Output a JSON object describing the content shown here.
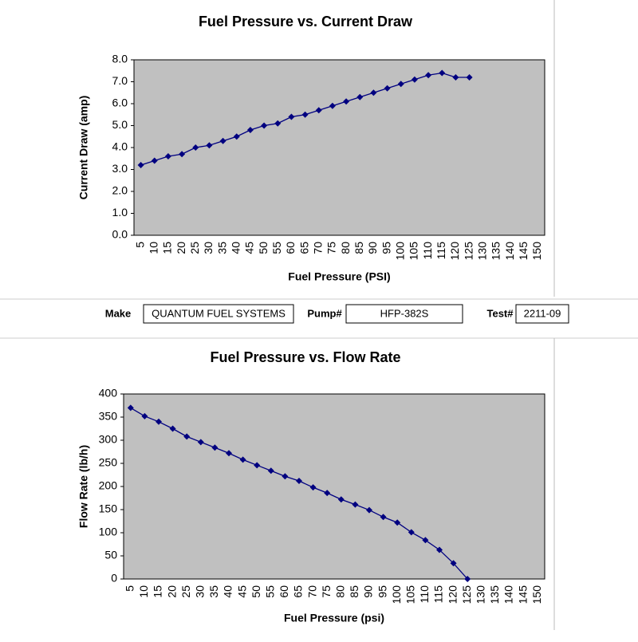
{
  "chart_data": [
    {
      "type": "line",
      "title": "Fuel Pressure vs. Current Draw",
      "x_label": "Fuel Pressure (PSI)",
      "y_label": "Current Draw (amp)",
      "categories": [
        5,
        10,
        15,
        20,
        25,
        30,
        35,
        40,
        45,
        50,
        55,
        60,
        65,
        70,
        75,
        80,
        85,
        90,
        95,
        100,
        105,
        110,
        115,
        120,
        125,
        130,
        135,
        140,
        145,
        150
      ],
      "series": [
        {
          "color": "#000080",
          "values": [
            3.2,
            3.4,
            3.6,
            3.7,
            4.0,
            4.1,
            4.3,
            4.5,
            4.8,
            5.0,
            5.1,
            5.4,
            5.5,
            5.7,
            5.9,
            6.1,
            6.3,
            6.5,
            6.7,
            6.9,
            7.1,
            7.3,
            7.4,
            7.2,
            7.2,
            null,
            null,
            null,
            null,
            null
          ]
        }
      ],
      "ylim": [
        0,
        8
      ],
      "yticks": [
        {
          "value": 0,
          "label": "0.0"
        },
        {
          "value": 1,
          "label": "1.0"
        },
        {
          "value": 2,
          "label": "2.0"
        },
        {
          "value": 3,
          "label": "3.0"
        },
        {
          "value": 4,
          "label": "4.0"
        },
        {
          "value": 5,
          "label": "5.0"
        },
        {
          "value": 6,
          "label": "6.0"
        },
        {
          "value": 7,
          "label": "7.0"
        },
        {
          "value": 8,
          "label": "8.0"
        }
      ],
      "grid": false,
      "plot_color": "#c0c0c0"
    },
    {
      "type": "line",
      "title": "Fuel Pressure vs. Flow Rate",
      "x_label": "Fuel Pressure (psi)",
      "y_label": "Flow Rate (lb/h)",
      "categories": [
        5,
        10,
        15,
        20,
        25,
        30,
        35,
        40,
        45,
        50,
        55,
        60,
        65,
        70,
        75,
        80,
        85,
        90,
        95,
        100,
        105,
        110,
        115,
        120,
        125,
        130,
        135,
        140,
        145,
        150
      ],
      "series": [
        {
          "color": "#000080",
          "values": [
            370,
            352,
            340,
            325,
            308,
            296,
            284,
            272,
            258,
            246,
            234,
            222,
            212,
            198,
            186,
            172,
            161,
            149,
            134,
            122,
            101,
            84,
            63,
            34,
            0,
            null,
            null,
            null,
            null,
            null
          ]
        }
      ],
      "ylim": [
        0,
        400
      ],
      "yticks": [
        0,
        50,
        100,
        150,
        200,
        250,
        300,
        350,
        400
      ],
      "grid": false,
      "plot_color": "#c0c0c0"
    }
  ],
  "info": {
    "make_label": "Make",
    "make": "QUANTUM FUEL SYSTEMS",
    "pump_label": "Pump#",
    "pump": "HFP-382S",
    "test_label": "Test#",
    "test": "2211-09"
  }
}
